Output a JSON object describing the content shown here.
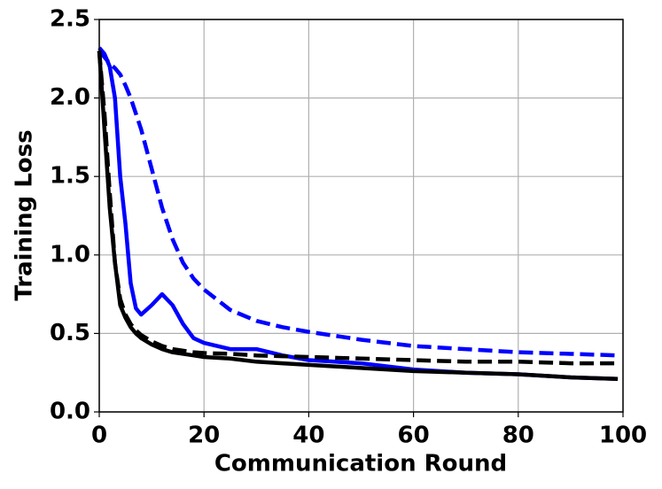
{
  "chart_data": {
    "type": "line",
    "xlabel": "Communication Round",
    "ylabel": "Training Loss",
    "x": [
      0,
      1,
      2,
      3,
      4,
      5,
      6,
      7,
      8,
      10,
      12,
      14,
      16,
      18,
      20,
      25,
      30,
      35,
      40,
      50,
      60,
      70,
      80,
      90,
      99
    ],
    "series": [
      {
        "color": "#0000ff",
        "dashed": false,
        "values": [
          2.32,
          2.28,
          2.2,
          2.0,
          1.5,
          1.2,
          0.82,
          0.66,
          0.62,
          0.68,
          0.75,
          0.68,
          0.56,
          0.47,
          0.44,
          0.4,
          0.4,
          0.36,
          0.33,
          0.31,
          0.27,
          0.25,
          0.24,
          0.22,
          0.21
        ]
      },
      {
        "color": "#0000ff",
        "dashed": true,
        "values": [
          2.3,
          2.26,
          2.22,
          2.19,
          2.15,
          2.08,
          2.0,
          1.9,
          1.8,
          1.55,
          1.3,
          1.1,
          0.95,
          0.85,
          0.78,
          0.65,
          0.58,
          0.54,
          0.51,
          0.46,
          0.42,
          0.4,
          0.38,
          0.37,
          0.36
        ]
      },
      {
        "color": "#000000",
        "dashed": true,
        "values": [
          2.3,
          1.9,
          1.4,
          0.95,
          0.72,
          0.62,
          0.56,
          0.52,
          0.49,
          0.45,
          0.42,
          0.4,
          0.39,
          0.38,
          0.375,
          0.37,
          0.36,
          0.355,
          0.35,
          0.34,
          0.33,
          0.32,
          0.32,
          0.31,
          0.31
        ]
      },
      {
        "color": "#000000",
        "dashed": false,
        "values": [
          2.3,
          1.8,
          1.3,
          0.95,
          0.68,
          0.6,
          0.54,
          0.5,
          0.47,
          0.43,
          0.4,
          0.38,
          0.37,
          0.36,
          0.35,
          0.34,
          0.32,
          0.31,
          0.3,
          0.28,
          0.26,
          0.25,
          0.24,
          0.22,
          0.21
        ]
      }
    ],
    "xlim": [
      0,
      100
    ],
    "xticks": [
      0,
      20,
      40,
      60,
      80,
      100
    ],
    "ylim": [
      0,
      2.5
    ],
    "yticks": [
      {
        "value": 0,
        "label": "0.0"
      },
      0.5,
      {
        "value": 1,
        "label": "1.0"
      },
      1.5,
      {
        "value": 2,
        "label": "2.0"
      },
      2.5
    ],
    "grid": true
  }
}
